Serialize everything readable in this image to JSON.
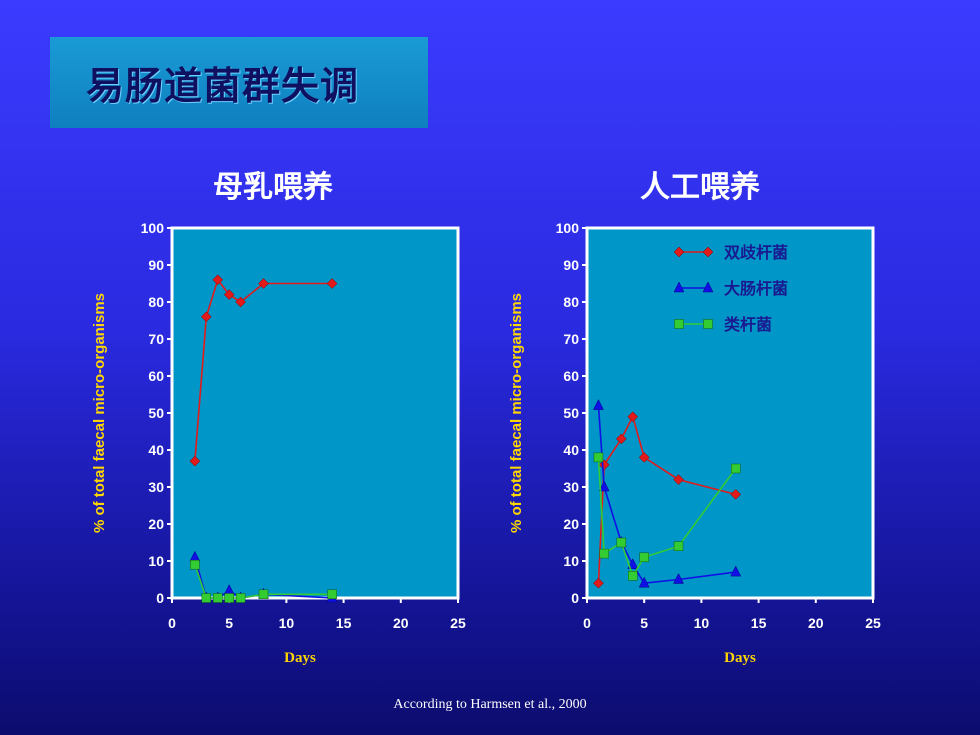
{
  "slide": {
    "title": "易肠道菌群失调",
    "footer": "According to Harmsen et al., 2000"
  },
  "colors": {
    "bifido": "#e31a1a",
    "coli": "#1010e6",
    "bacteroides": "#33cc33",
    "plot_bg": "#0096c8"
  },
  "chart_data": [
    {
      "type": "line",
      "title": "母乳喂养",
      "xlabel": "Days",
      "ylabel": "% of total faecal micro-organisms",
      "xlim": [
        0,
        25
      ],
      "ylim": [
        0,
        100
      ],
      "x_ticks": [
        "0",
        "5",
        "10",
        "15",
        "20",
        "25"
      ],
      "y_ticks": [
        "0",
        "10",
        "20",
        "30",
        "40",
        "50",
        "60",
        "70",
        "80",
        "90",
        "100"
      ],
      "series": [
        {
          "key": "bifido",
          "marker": "diamond",
          "x": [
            2,
            3,
            4,
            5,
            6,
            8,
            14
          ],
          "y": [
            37,
            76,
            86,
            82,
            80,
            85,
            85
          ]
        },
        {
          "key": "coli",
          "marker": "triangle",
          "x": [
            2,
            3,
            4,
            5,
            6,
            8,
            14
          ],
          "y": [
            11,
            0,
            0,
            2,
            0,
            1,
            0
          ]
        },
        {
          "key": "bacteroides",
          "marker": "square",
          "x": [
            2,
            3,
            4,
            5,
            6,
            8,
            14
          ],
          "y": [
            9,
            0,
            0,
            0,
            0,
            1,
            1
          ]
        }
      ]
    },
    {
      "type": "line",
      "title": "人工喂养",
      "xlabel": "Days",
      "ylabel": "% of total faecal micro-organisms",
      "xlim": [
        0,
        25
      ],
      "ylim": [
        0,
        100
      ],
      "x_ticks": [
        "0",
        "5",
        "10",
        "15",
        "20",
        "25"
      ],
      "y_ticks": [
        "0",
        "10",
        "20",
        "30",
        "40",
        "50",
        "60",
        "70",
        "80",
        "90",
        "100"
      ],
      "legend": "top-right",
      "series": [
        {
          "key": "bifido",
          "name": "双歧杆菌",
          "marker": "diamond",
          "x": [
            1,
            1.5,
            3,
            4,
            5,
            8,
            13
          ],
          "y": [
            4,
            36,
            43,
            49,
            38,
            32,
            28
          ]
        },
        {
          "key": "coli",
          "name": "大肠杆菌",
          "marker": "triangle",
          "x": [
            1,
            1.5,
            3,
            4,
            5,
            8,
            13
          ],
          "y": [
            52,
            30,
            15,
            9,
            4,
            5,
            7
          ]
        },
        {
          "key": "bacteroides",
          "name": "类杆菌",
          "marker": "square",
          "x": [
            1,
            1.5,
            3,
            4,
            5,
            8,
            13
          ],
          "y": [
            38,
            12,
            15,
            6,
            11,
            14,
            35
          ]
        }
      ]
    }
  ]
}
